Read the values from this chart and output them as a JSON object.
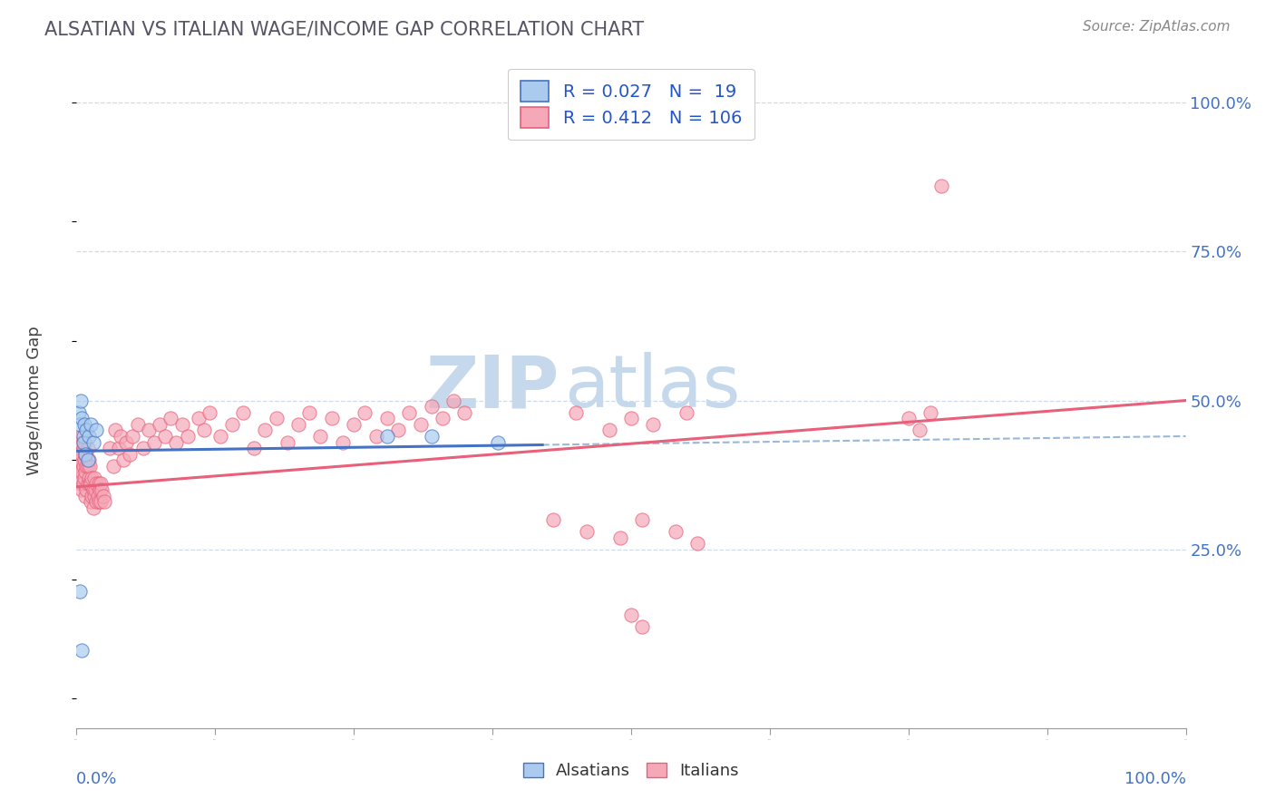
{
  "title": "ALSATIAN VS ITALIAN WAGE/INCOME GAP CORRELATION CHART",
  "source": "Source: ZipAtlas.com",
  "ylabel": "Wage/Income Gap",
  "y_tick_labels": [
    "25.0%",
    "50.0%",
    "75.0%",
    "100.0%"
  ],
  "y_tick_values": [
    0.25,
    0.5,
    0.75,
    1.0
  ],
  "legend_alsatian": "R = 0.027   N =  19",
  "legend_italian": "R = 0.412   N = 106",
  "alsatian_color": "#aacbee",
  "italian_color": "#f5a8b8",
  "alsatian_line_color": "#4472c4",
  "italian_line_color": "#e8607a",
  "dashed_line_color": "#9ab8d8",
  "background_color": "#ffffff",
  "watermark_zip": "ZIP",
  "watermark_atlas": "atlas",
  "watermark_color": "#d8e8f4",
  "xlim": [
    0.0,
    1.0
  ],
  "ylim": [
    -0.05,
    1.05
  ],
  "title_fontsize": 15,
  "source_fontsize": 11,
  "tick_label_fontsize": 13,
  "ylabel_fontsize": 13
}
